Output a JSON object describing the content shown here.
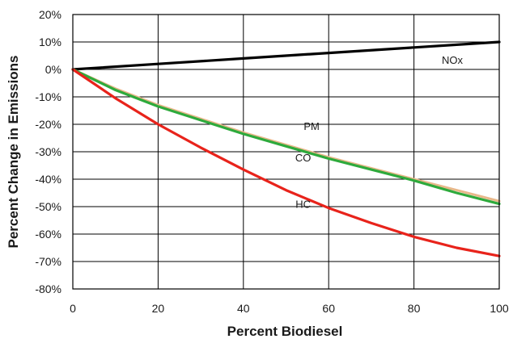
{
  "chart_data": {
    "type": "line",
    "title": "",
    "xlabel": "Percent Biodiesel",
    "ylabel": "Percent Change in Emissions",
    "xlim": [
      0,
      100
    ],
    "ylim": [
      -80,
      20
    ],
    "x_ticks": [
      0,
      20,
      40,
      60,
      80,
      100
    ],
    "y_ticks": [
      20,
      10,
      0,
      -10,
      -20,
      -30,
      -40,
      -50,
      -60,
      -70,
      -80
    ],
    "y_tick_labels": [
      "20%",
      "10%",
      "0%",
      "-10%",
      "-20%",
      "-30%",
      "-40%",
      "-50%",
      "-60%",
      "-70%",
      "-80%"
    ],
    "grid": true,
    "legend": "none",
    "series": [
      {
        "name": "NOx",
        "color": "#000000",
        "x": [
          0,
          20,
          40,
          60,
          80,
          100
        ],
        "values": [
          0,
          2,
          4,
          6,
          8,
          10
        ]
      },
      {
        "name": "PM",
        "color": "#e8b88a",
        "x": [
          0,
          10,
          20,
          30,
          40,
          50,
          60,
          70,
          80,
          90,
          100
        ],
        "values": [
          0,
          -7,
          -13,
          -18,
          -23,
          -27.5,
          -32,
          -36,
          -40,
          -44,
          -48
        ]
      },
      {
        "name": "CO",
        "color": "#2eaa3c",
        "x": [
          0,
          10,
          20,
          30,
          40,
          50,
          60,
          70,
          80,
          90,
          100
        ],
        "values": [
          0,
          -7.5,
          -13.5,
          -18.5,
          -23.5,
          -28,
          -32.5,
          -36.5,
          -40.5,
          -45,
          -49
        ]
      },
      {
        "name": "HC",
        "color": "#e8231b",
        "x": [
          0,
          10,
          20,
          30,
          40,
          50,
          60,
          70,
          80,
          90,
          100
        ],
        "values": [
          0,
          -10.5,
          -20,
          -28.5,
          -36.5,
          -44,
          -50.5,
          -56,
          -61,
          -65,
          -68
        ]
      }
    ],
    "annotations": [
      {
        "text": "NOx",
        "x": 89,
        "y": 2
      },
      {
        "text": "PM",
        "x": 56,
        "y": -22
      },
      {
        "text": "CO",
        "x": 54,
        "y": -33.5
      },
      {
        "text": "HC",
        "x": 54,
        "y": -50.5
      }
    ]
  }
}
